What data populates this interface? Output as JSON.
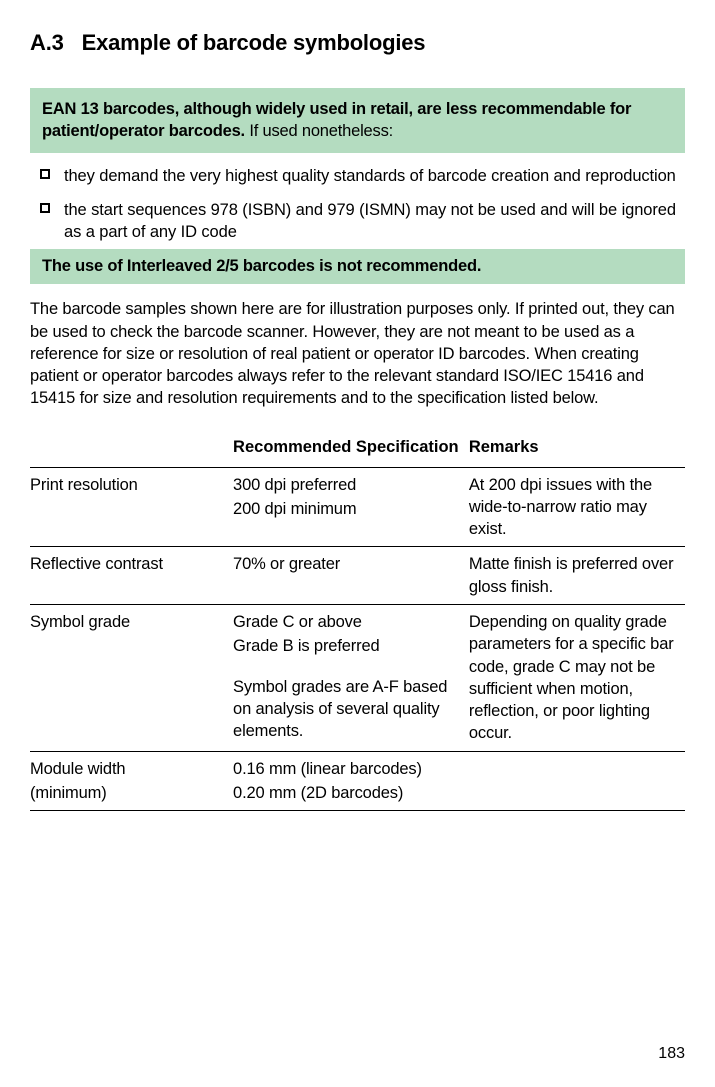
{
  "heading": {
    "number": "A.3",
    "title": "Example of barcode symbologies"
  },
  "callout": {
    "header_bold": "EAN 13 barcodes, although widely used in retail, are less recommendable for patient/operator barcodes.",
    "header_rest": " If used nonetheless:",
    "items": [
      "they demand the very highest quality standards of barcode creation and reproduction",
      "the start sequences 978 (ISBN) and 979 (ISMN) may not be used and will be ignored as a part of any ID code"
    ],
    "footer": "The use of Interleaved 2/5 barcodes is not recommended."
  },
  "body_paragraph": "The barcode samples shown here are for illustration purposes only. If printed out, they can be used to check the barcode scanner. However, they are not meant to be used as a reference for size or resolution of real patient or operator ID barcodes. When creating patient or operator barcodes always refer to the relevant standard ISO/IEC 15416 and 15415 for size and resolution requirements and to the specification listed below.",
  "table": {
    "headers": {
      "c1": "",
      "c2": "Recommended Specification",
      "c3": "Remarks"
    },
    "rows": [
      {
        "c1": "Print resolution",
        "c2a": "300 dpi preferred",
        "c2b": "200 dpi minimum",
        "c3": "At 200 dpi issues with the wide-to-narrow ratio may exist."
      },
      {
        "c1": "Reflective contrast",
        "c2a": "70% or greater",
        "c2b": "",
        "c3": "Matte finish is preferred over gloss finish."
      },
      {
        "c1": "Symbol grade",
        "c2a": "Grade C or above",
        "c2b": "Grade B is preferred",
        "c2c": "Symbol grades are A-F based on analysis of several quality elements.",
        "c3": "Depending on quality grade parameters for a specific bar code, grade C may not be sufficient when motion, reflection, or poor lighting occur."
      },
      {
        "c1a": "Module width",
        "c1b": "(minimum)",
        "c2a": "0.16 mm (linear barcodes)",
        "c2b": "0.20 mm (2D barcodes)",
        "c3": ""
      }
    ]
  },
  "page_number": "183",
  "colors": {
    "highlight": "#b4dcc0"
  }
}
